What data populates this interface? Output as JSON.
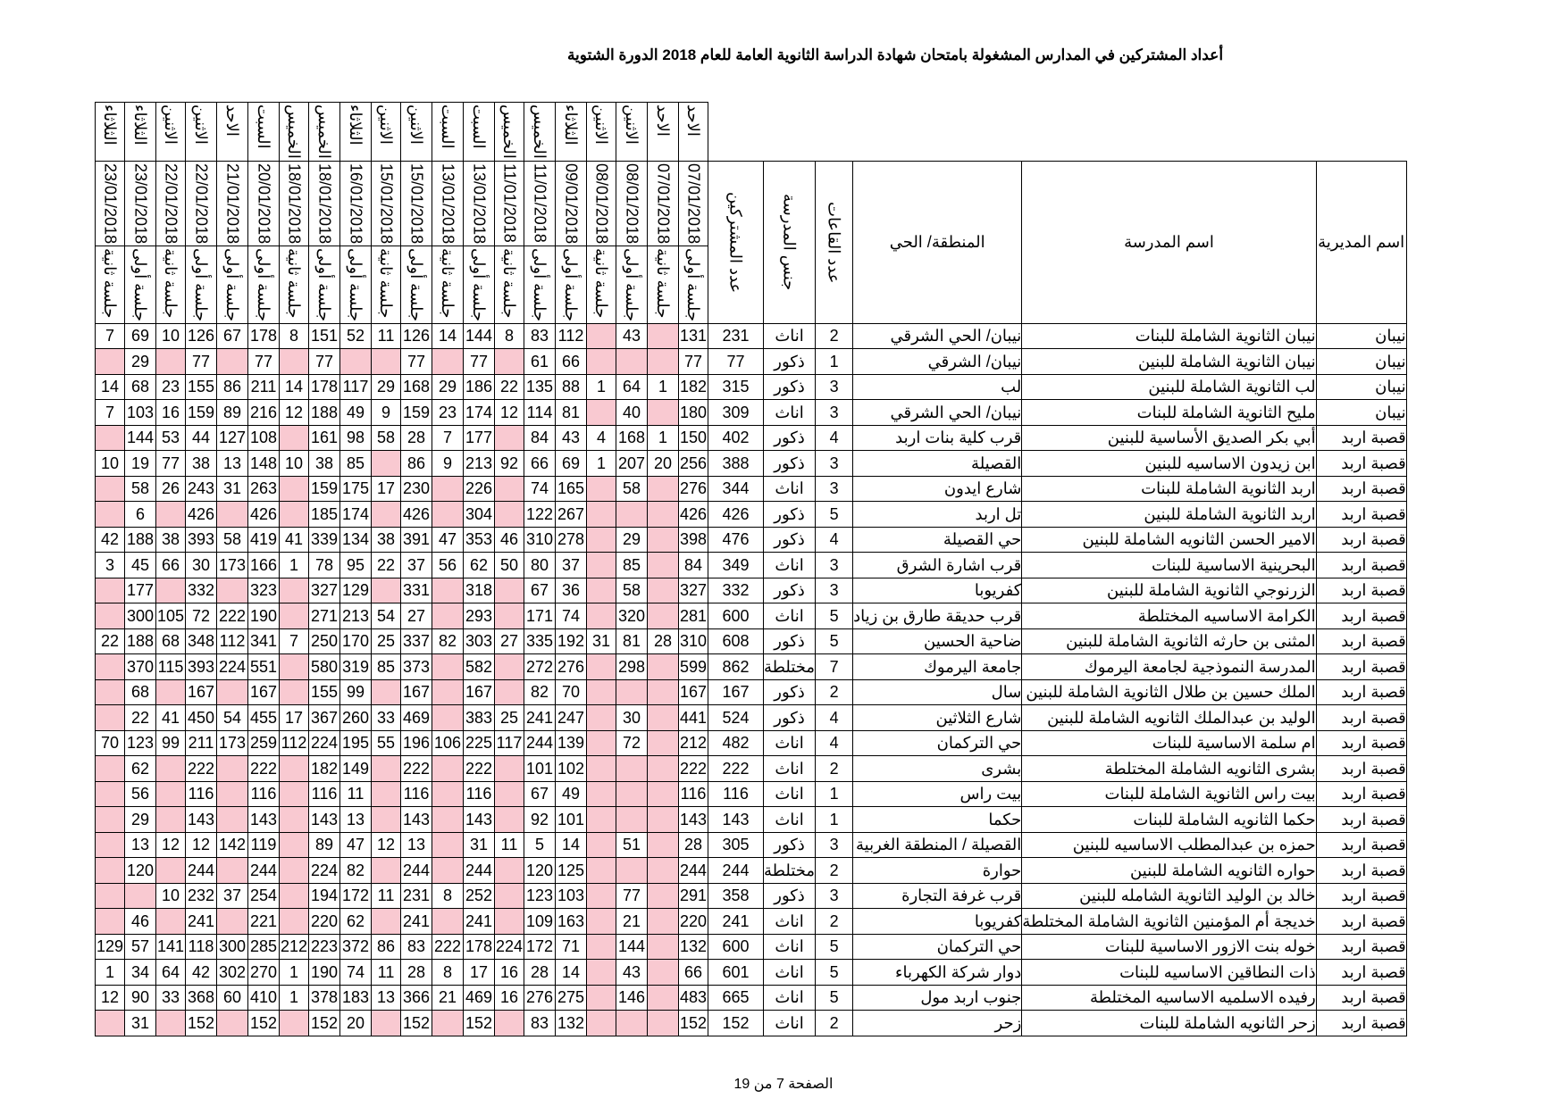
{
  "title": "أعداد المشتركين في المدارس المشغولة بامتحان شهادة الدراسة الثانوية العامة للعام 2018 الدورة الشتوية",
  "headers": {
    "directorate": "اسم المديرية",
    "school": "اسم المدرسة",
    "area": "المنطقة/ الحي",
    "rooms": "عدد القاعات",
    "gender": "جنس المدرسة",
    "participants": "عدد المشتركين"
  },
  "sessions": [
    {
      "day": "الاحد",
      "date": "07/01/2018",
      "session": "جلسة أولى"
    },
    {
      "day": "الاحد",
      "date": "07/01/2018",
      "session": "جلسة ثانية"
    },
    {
      "day": "الاثنين",
      "date": "08/01/2018",
      "session": "جلسة أولى"
    },
    {
      "day": "الاثنين",
      "date": "08/01/2018",
      "session": "جلسة ثانية"
    },
    {
      "day": "الثلاثاء",
      "date": "09/01/2018",
      "session": "جلسة أولى"
    },
    {
      "day": "الخميس",
      "date": "11/01/2018",
      "session": "جلسة أولى"
    },
    {
      "day": "الخميس",
      "date": "11/01/2018",
      "session": "جلسة ثانية"
    },
    {
      "day": "السبت",
      "date": "13/01/2018",
      "session": "جلسة أولى"
    },
    {
      "day": "السبت",
      "date": "13/01/2018",
      "session": "جلسة ثانية"
    },
    {
      "day": "الاثنين",
      "date": "15/01/2018",
      "session": "جلسة أولى"
    },
    {
      "day": "الاثنين",
      "date": "15/01/2018",
      "session": "جلسة ثانية"
    },
    {
      "day": "الثلاثاء",
      "date": "16/01/2018",
      "session": "جلسة أولى"
    },
    {
      "day": "الخميس",
      "date": "18/01/2018",
      "session": "جلسة أولى"
    },
    {
      "day": "الخميس",
      "date": "18/01/2018",
      "session": "جلسة ثانية"
    },
    {
      "day": "السبت",
      "date": "20/01/2018",
      "session": "جلسة أولى"
    },
    {
      "day": "الاحد",
      "date": "21/01/2018",
      "session": "جلسة أولى"
    },
    {
      "day": "الاثنين",
      "date": "22/01/2018",
      "session": "جلسة أولى"
    },
    {
      "day": "الاثنين",
      "date": "22/01/2018",
      "session": "جلسة ثانية"
    },
    {
      "day": "الثلاثاء",
      "date": "23/01/2018",
      "session": "جلسة أولى"
    },
    {
      "day": "الثلاثاء",
      "date": "23/01/2018",
      "session": "جلسة ثانية"
    }
  ],
  "rows": [
    {
      "directorate": "نيبان",
      "school": "نيبان الثانوية الشاملة للبنات",
      "area": "نيبان/ الحي الشرقي",
      "rooms": "2",
      "gender": "اناث",
      "total": "231",
      "v": [
        "131",
        "",
        "43",
        "",
        "112",
        "83",
        "8",
        "144",
        "14",
        "126",
        "11",
        "52",
        "151",
        "8",
        "178",
        "67",
        "126",
        "10",
        "69",
        "7"
      ]
    },
    {
      "directorate": "نيبان",
      "school": "نيبان الثانوية الشاملة للبنين",
      "area": "نيبان/ الشرقي",
      "rooms": "1",
      "gender": "ذكور",
      "total": "77",
      "v": [
        "77",
        "",
        "",
        "",
        "66",
        "61",
        "",
        "77",
        "",
        "77",
        "",
        "",
        "77",
        "",
        "77",
        "",
        "77",
        "",
        "29",
        ""
      ]
    },
    {
      "directorate": "نيبان",
      "school": "لب الثانوية الشاملة للبنين",
      "area": "لب",
      "rooms": "3",
      "gender": "ذكور",
      "total": "315",
      "v": [
        "182",
        "1",
        "64",
        "1",
        "88",
        "135",
        "22",
        "186",
        "29",
        "168",
        "29",
        "117",
        "178",
        "14",
        "211",
        "86",
        "155",
        "23",
        "68",
        "14"
      ]
    },
    {
      "directorate": "نيبان",
      "school": "مليح الثانوية الشاملة للبنات",
      "area": "نيبان/ الحي الشرقي",
      "rooms": "3",
      "gender": "اناث",
      "total": "309",
      "v": [
        "180",
        "",
        "40",
        "",
        "81",
        "114",
        "12",
        "174",
        "23",
        "159",
        "9",
        "49",
        "188",
        "12",
        "216",
        "89",
        "159",
        "16",
        "103",
        "7"
      ]
    },
    {
      "directorate": "قصبة اربد",
      "school": "أبي بكر الصديق الأساسية للبنين",
      "area": "قرب كلية بنات اربد",
      "rooms": "4",
      "gender": "ذكور",
      "total": "402",
      "v": [
        "150",
        "1",
        "168",
        "4",
        "43",
        "84",
        "",
        "177",
        "7",
        "28",
        "58",
        "98",
        "161",
        "",
        "108",
        "127",
        "44",
        "53",
        "144",
        ""
      ]
    },
    {
      "directorate": "قصبة اربد",
      "school": "ابن زيدون الاساسيه للبنين",
      "area": "القصيلة",
      "rooms": "3",
      "gender": "ذكور",
      "total": "388",
      "v": [
        "256",
        "20",
        "207",
        "1",
        "69",
        "66",
        "92",
        "213",
        "9",
        "86",
        "",
        "85",
        "38",
        "10",
        "148",
        "13",
        "38",
        "77",
        "19",
        "10"
      ]
    },
    {
      "directorate": "قصبة اربد",
      "school": "اربد الثانوية الشاملة للبنات",
      "area": "شارع ايدون",
      "rooms": "3",
      "gender": "اناث",
      "total": "344",
      "v": [
        "276",
        "",
        "58",
        "",
        "165",
        "74",
        "",
        "226",
        "",
        "230",
        "17",
        "175",
        "159",
        "",
        "263",
        "31",
        "243",
        "26",
        "58",
        ""
      ]
    },
    {
      "directorate": "قصبة اربد",
      "school": "اربد الثانوية الشاملة للبنين",
      "area": "تل اربد",
      "rooms": "5",
      "gender": "ذكور",
      "total": "426",
      "v": [
        "426",
        "",
        "",
        "",
        "267",
        "122",
        "",
        "304",
        "",
        "426",
        "",
        "174",
        "185",
        "",
        "426",
        "",
        "426",
        "",
        "6",
        ""
      ]
    },
    {
      "directorate": "قصبة اربد",
      "school": "الامير الحسن الثانويه الشاملة للبنين",
      "area": "حي القصيلة",
      "rooms": "4",
      "gender": "ذكور",
      "total": "476",
      "v": [
        "398",
        "",
        "29",
        "",
        "278",
        "310",
        "46",
        "353",
        "47",
        "391",
        "38",
        "134",
        "339",
        "41",
        "419",
        "58",
        "393",
        "38",
        "188",
        "42"
      ]
    },
    {
      "directorate": "قصبة اربد",
      "school": "البحرينية الاساسية للبنات",
      "area": "قرب اشارة الشرق",
      "rooms": "3",
      "gender": "اناث",
      "total": "349",
      "v": [
        "84",
        "",
        "85",
        "",
        "37",
        "80",
        "50",
        "62",
        "56",
        "37",
        "22",
        "95",
        "78",
        "1",
        "166",
        "173",
        "30",
        "66",
        "45",
        "3"
      ]
    },
    {
      "directorate": "قصبة اربد",
      "school": "الزرنوجي الثانوية الشاملة للبنين",
      "area": "كفريوبا",
      "rooms": "3",
      "gender": "ذكور",
      "total": "332",
      "v": [
        "327",
        "",
        "58",
        "",
        "36",
        "67",
        "",
        "318",
        "",
        "331",
        "",
        "129",
        "327",
        "",
        "323",
        "",
        "332",
        "",
        "177",
        ""
      ]
    },
    {
      "directorate": "قصبة اربد",
      "school": "الكرامة الاساسيه المختلطة",
      "area": "قرب حديقة طارق بن زياد",
      "rooms": "5",
      "gender": "اناث",
      "total": "600",
      "v": [
        "281",
        "",
        "320",
        "",
        "74",
        "171",
        "",
        "293",
        "",
        "27",
        "54",
        "213",
        "271",
        "",
        "190",
        "222",
        "72",
        "105",
        "300",
        ""
      ]
    },
    {
      "directorate": "قصبة اربد",
      "school": "المثنى بن حارثه الثانوية الشاملة للبنين",
      "area": "ضاحية الحسين",
      "rooms": "5",
      "gender": "ذكور",
      "total": "608",
      "v": [
        "310",
        "28",
        "81",
        "31",
        "192",
        "335",
        "27",
        "303",
        "82",
        "337",
        "25",
        "170",
        "250",
        "7",
        "341",
        "112",
        "348",
        "68",
        "188",
        "22"
      ]
    },
    {
      "directorate": "قصبة اربد",
      "school": "المدرسة النموذجية لجامعة اليرموك",
      "area": "جامعة اليرموك",
      "rooms": "7",
      "gender": "مختلطة",
      "total": "862",
      "v": [
        "599",
        "",
        "298",
        "",
        "276",
        "272",
        "",
        "582",
        "",
        "373",
        "85",
        "319",
        "580",
        "",
        "551",
        "224",
        "393",
        "115",
        "370",
        ""
      ]
    },
    {
      "directorate": "قصبة اربد",
      "school": "الملك حسين بن طلال الثانوية الشاملة للبنين",
      "area": "سال",
      "rooms": "2",
      "gender": "ذكور",
      "total": "167",
      "v": [
        "167",
        "",
        "",
        "",
        "70",
        "82",
        "",
        "167",
        "",
        "167",
        "",
        "99",
        "155",
        "",
        "167",
        "",
        "167",
        "",
        "68",
        ""
      ]
    },
    {
      "directorate": "قصبة اربد",
      "school": "الوليد بن عبدالملك الثانويه الشاملة للبنين",
      "area": "شارع الثلاثين",
      "rooms": "4",
      "gender": "ذكور",
      "total": "524",
      "v": [
        "441",
        "",
        "30",
        "",
        "247",
        "241",
        "25",
        "383",
        "",
        "469",
        "33",
        "260",
        "367",
        "17",
        "455",
        "54",
        "450",
        "41",
        "22",
        ""
      ]
    },
    {
      "directorate": "قصبة اربد",
      "school": "ام سلمة الاساسية للبنات",
      "area": "حي التركمان",
      "rooms": "4",
      "gender": "اناث",
      "total": "482",
      "v": [
        "212",
        "",
        "72",
        "",
        "139",
        "244",
        "117",
        "225",
        "106",
        "196",
        "55",
        "195",
        "224",
        "112",
        "259",
        "173",
        "211",
        "99",
        "123",
        "70"
      ]
    },
    {
      "directorate": "قصبة اربد",
      "school": "بشرى الثانويه الشاملة المختلطة",
      "area": "بشرى",
      "rooms": "2",
      "gender": "اناث",
      "total": "222",
      "v": [
        "222",
        "",
        "",
        "",
        "102",
        "101",
        "",
        "222",
        "",
        "222",
        "",
        "149",
        "182",
        "",
        "222",
        "",
        "222",
        "",
        "62",
        ""
      ]
    },
    {
      "directorate": "قصبة اربد",
      "school": "بيت راس الثانوية الشاملة للبنات",
      "area": "بيت راس",
      "rooms": "1",
      "gender": "اناث",
      "total": "116",
      "v": [
        "116",
        "",
        "",
        "",
        "49",
        "67",
        "",
        "116",
        "",
        "116",
        "",
        "11",
        "116",
        "",
        "116",
        "",
        "116",
        "",
        "56",
        ""
      ]
    },
    {
      "directorate": "قصبة اربد",
      "school": "حكما الثانويه الشاملة للبنات",
      "area": "حكما",
      "rooms": "1",
      "gender": "اناث",
      "total": "143",
      "v": [
        "143",
        "",
        "",
        "",
        "101",
        "92",
        "",
        "143",
        "",
        "143",
        "",
        "13",
        "143",
        "",
        "143",
        "",
        "143",
        "",
        "29",
        ""
      ]
    },
    {
      "directorate": "قصبة اربد",
      "school": "حمزه بن عبدالمطلب الاساسيه للبنين",
      "area": "القصيلة / المنطقة الغربية",
      "rooms": "3",
      "gender": "ذكور",
      "total": "305",
      "v": [
        "28",
        "",
        "51",
        "",
        "14",
        "5",
        "11",
        "31",
        "",
        "13",
        "12",
        "47",
        "89",
        "",
        "119",
        "142",
        "12",
        "12",
        "13",
        ""
      ]
    },
    {
      "directorate": "قصبة اربد",
      "school": "حواره الثانويه الشاملة للبنين",
      "area": "حوارة",
      "rooms": "2",
      "gender": "مختلطة",
      "total": "244",
      "v": [
        "244",
        "",
        "",
        "",
        "125",
        "120",
        "",
        "244",
        "",
        "244",
        "",
        "82",
        "224",
        "",
        "244",
        "",
        "244",
        "",
        "120",
        ""
      ]
    },
    {
      "directorate": "قصبة اربد",
      "school": "خالد بن الوليد الثانوية الشامله للبنين",
      "area": "قرب غرفة التجارة",
      "rooms": "3",
      "gender": "ذكور",
      "total": "358",
      "v": [
        "291",
        "",
        "77",
        "",
        "103",
        "123",
        "",
        "252",
        "8",
        "231",
        "11",
        "172",
        "194",
        "",
        "254",
        "37",
        "232",
        "10",
        "",
        ""
      ]
    },
    {
      "directorate": "قصبة اربد",
      "school": "خديجة أم المؤمنين الثانوية الشاملة المختلطة",
      "area": "كفريوبا",
      "rooms": "2",
      "gender": "اناث",
      "total": "241",
      "v": [
        "220",
        "",
        "21",
        "",
        "163",
        "109",
        "",
        "241",
        "",
        "241",
        "",
        "62",
        "220",
        "",
        "221",
        "",
        "241",
        "",
        "46",
        ""
      ]
    },
    {
      "directorate": "قصبة اربد",
      "school": "خوله بنت الازور الاساسية للبنات",
      "area": "حي التركمان",
      "rooms": "5",
      "gender": "اناث",
      "total": "600",
      "v": [
        "132",
        "",
        "144",
        "",
        "71",
        "172",
        "224",
        "178",
        "222",
        "83",
        "86",
        "372",
        "223",
        "212",
        "285",
        "300",
        "118",
        "141",
        "57",
        "129"
      ]
    },
    {
      "directorate": "قصبة اربد",
      "school": "ذات النطاقين الاساسيه للبنات",
      "area": "دوار شركة الكهرباء",
      "rooms": "5",
      "gender": "اناث",
      "total": "601",
      "v": [
        "66",
        "",
        "43",
        "",
        "14",
        "28",
        "16",
        "17",
        "8",
        "28",
        "11",
        "74",
        "190",
        "1",
        "270",
        "302",
        "42",
        "64",
        "34",
        "1"
      ]
    },
    {
      "directorate": "قصبة اربد",
      "school": "رفيده الاسلميه الاساسيه المختلطة",
      "area": "جنوب اربد مول",
      "rooms": "5",
      "gender": "اناث",
      "total": "665",
      "v": [
        "483",
        "",
        "146",
        "",
        "275",
        "276",
        "16",
        "469",
        "21",
        "366",
        "13",
        "183",
        "378",
        "1",
        "410",
        "60",
        "368",
        "33",
        "90",
        "12"
      ]
    },
    {
      "directorate": "قصبة اربد",
      "school": "زحر الثانويه الشاملة للبنات",
      "area": "زحر",
      "rooms": "2",
      "gender": "اناث",
      "total": "152",
      "v": [
        "152",
        "",
        "",
        "",
        "132",
        "83",
        "",
        "152",
        "",
        "152",
        "",
        "20",
        "152",
        "",
        "152",
        "",
        "152",
        "",
        "31",
        ""
      ]
    }
  ],
  "footer": {
    "page": "الصفحة 7 من 19"
  }
}
